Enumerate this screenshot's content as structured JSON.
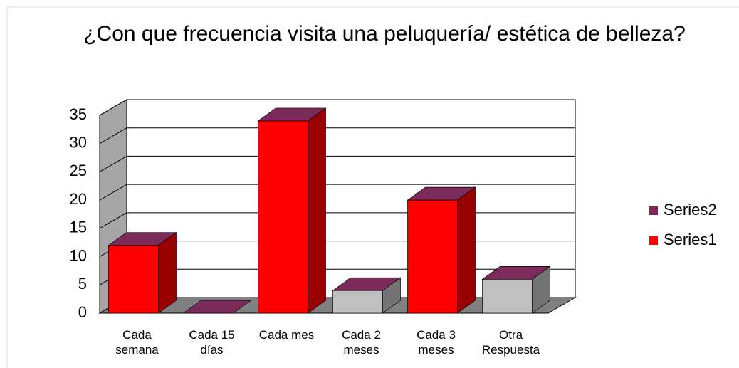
{
  "chart_data": {
    "type": "bar3d",
    "title": "¿Con que frecuencia visita una peluquería/ estética de belleza?",
    "categories": [
      "Cada semana",
      "Cada 15 días",
      "Cada mes",
      "Cada 2 meses",
      "Cada 3 meses",
      "Otra Respuesta"
    ],
    "series": [
      {
        "name": "Series2",
        "color": "#7b2a5a",
        "values": [
          null,
          null,
          null,
          null,
          null,
          null
        ]
      },
      {
        "name": "Series1",
        "color": "#ff0000",
        "values": [
          12,
          0,
          34,
          4,
          20,
          6
        ],
        "colors": [
          "#ff0000",
          "#ff0000",
          "#ff0000",
          "#c0c0c0",
          "#ff0000",
          "#c0c0c0"
        ]
      }
    ],
    "ylim": [
      0,
      35
    ],
    "yticks": [
      0,
      5,
      10,
      15,
      20,
      25,
      30,
      35
    ],
    "grid": true,
    "legend": "right"
  }
}
